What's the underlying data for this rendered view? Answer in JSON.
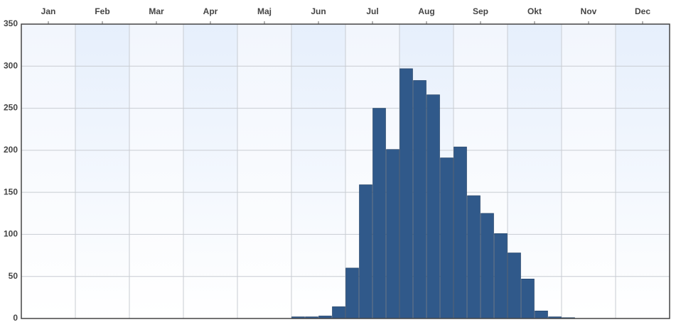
{
  "chart_data": {
    "type": "histogram",
    "bins": [
      5,
      5.25,
      5.5,
      5.75,
      6,
      6.25,
      6.5,
      6.75,
      7,
      7.25,
      7.5,
      7.75,
      8,
      8.25,
      8.5,
      8.75,
      9,
      9.25,
      9.5,
      9.75,
      10,
      10.25
    ],
    "values": [
      2,
      2,
      3,
      14,
      60,
      159,
      250,
      201,
      297,
      283,
      266,
      191,
      204,
      146,
      125,
      101,
      78,
      47,
      9,
      2,
      1
    ],
    "color": "#30598a",
    "xlim": [
      0,
      12
    ],
    "xticks": [
      {
        "value": 0.5,
        "label": "Jan"
      },
      {
        "value": 1.5,
        "label": "Feb"
      },
      {
        "value": 2.5,
        "label": "Mar"
      },
      {
        "value": 3.5,
        "label": "Apr"
      },
      {
        "value": 4.5,
        "label": "Maj"
      },
      {
        "value": 5.5,
        "label": "Jun"
      },
      {
        "value": 6.5,
        "label": "Jul"
      },
      {
        "value": 7.5,
        "label": "Aug"
      },
      {
        "value": 8.5,
        "label": "Sep"
      },
      {
        "value": 9.5,
        "label": "Okt"
      },
      {
        "value": 10.5,
        "label": "Nov"
      },
      {
        "value": 11.5,
        "label": "Dec"
      }
    ],
    "ylim": [
      0,
      350
    ],
    "yticks": [
      0,
      50,
      100,
      150,
      200,
      250,
      300,
      350
    ],
    "grid": true
  }
}
